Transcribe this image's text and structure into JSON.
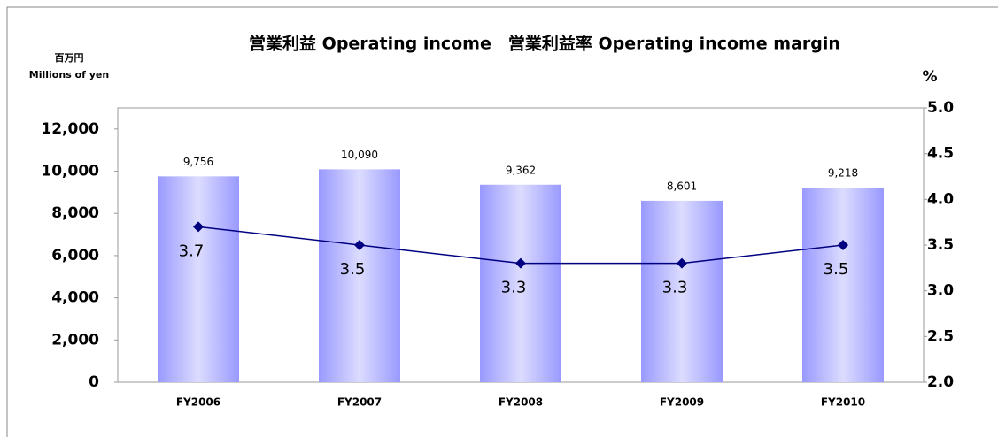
{
  "chart_data": {
    "type": "bar_line",
    "title": "営業利益 Operating income　営業利益率 Operating income margin",
    "y_label": "百万円",
    "y_label_en": "Millions of yen",
    "y2_label": "%",
    "categories": [
      "FY2006",
      "FY2007",
      "FY2008",
      "FY2009",
      "FY2010"
    ],
    "series": [
      {
        "name": "営業利益 Operating income",
        "type": "bar",
        "color": "#9999ff",
        "values": [
          9756,
          10090,
          9362,
          8601,
          9218
        ],
        "value_labels": [
          "9,756",
          "10,090",
          "9,362",
          "8,601",
          "9,218"
        ]
      },
      {
        "name": "営業利益率 Operating income margin",
        "type": "line",
        "axis": "y2",
        "color": "#000080",
        "values": [
          3.7,
          3.5,
          3.3,
          3.3,
          3.5
        ]
      }
    ],
    "ylim": [
      0,
      13000
    ],
    "yticks": [
      0,
      {
        "value": 2000,
        "label": "2,000"
      },
      {
        "value": 4000,
        "label": "4,000"
      },
      {
        "value": 6000,
        "label": "6,000"
      },
      {
        "value": 8000,
        "label": "8,000"
      },
      {
        "value": 10000,
        "label": "10,000"
      },
      {
        "value": 12000,
        "label": "12,000"
      }
    ],
    "y2lim": [
      2.0,
      5.0
    ],
    "y2ticks": [
      {
        "value": 2.0,
        "label": "2.0"
      },
      2.5,
      {
        "value": 3.0,
        "label": "3.0"
      },
      3.5,
      {
        "value": 4.0,
        "label": "4.0"
      },
      4.5,
      {
        "value": 5.0,
        "label": "5.0"
      }
    ]
  }
}
